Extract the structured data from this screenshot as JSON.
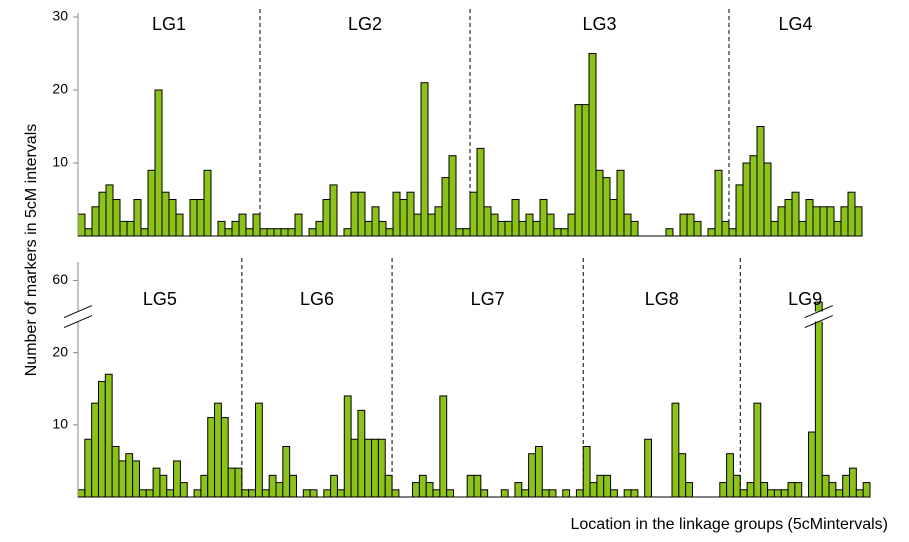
{
  "y_label": "Number of markers in 5cM intervals",
  "x_label": "Location in the linkage groups (5cMintervals)",
  "chart_data": [
    {
      "type": "bar",
      "color": "#8cc21a",
      "ylim": [
        0,
        30
      ],
      "yticks": [
        10,
        20,
        30
      ],
      "groups": [
        {
          "label": "LG1",
          "values": [
            3,
            1,
            4,
            6,
            7,
            5,
            2,
            2,
            5,
            1,
            9,
            20,
            6,
            5,
            3,
            0,
            5,
            5,
            9,
            0,
            2,
            1,
            2,
            3,
            1,
            3
          ]
        },
        {
          "label": "LG2",
          "values": [
            1,
            1,
            1,
            1,
            1,
            3,
            0,
            1,
            2,
            5,
            7,
            0,
            1,
            6,
            6,
            2,
            4,
            2,
            1,
            6,
            5,
            6,
            3,
            21,
            3,
            4,
            8,
            11,
            1,
            1
          ]
        },
        {
          "label": "LG3",
          "values": [
            6,
            12,
            4,
            3,
            2,
            2,
            5,
            2,
            3,
            2,
            5,
            3,
            1,
            1,
            3,
            18,
            18,
            25,
            9,
            8,
            5,
            9,
            3,
            2,
            0,
            0,
            0,
            0,
            1,
            0,
            3,
            3,
            2,
            0,
            1,
            9,
            2
          ]
        },
        {
          "label": "LG4",
          "values": [
            1,
            7,
            10,
            11,
            15,
            10,
            2,
            4,
            5,
            6,
            2,
            5,
            4,
            4,
            4,
            2,
            4,
            6,
            4
          ]
        }
      ]
    },
    {
      "type": "bar",
      "color": "#8cc21a",
      "ylim": [
        0,
        62
      ],
      "yticks": [
        10,
        20,
        60
      ],
      "axis_break": [
        25,
        55
      ],
      "groups": [
        {
          "label": "LG5",
          "values": [
            1,
            8,
            13,
            16,
            17,
            7,
            5,
            6,
            5,
            1,
            1,
            4,
            3,
            1,
            5,
            2,
            0,
            1,
            3,
            11,
            13,
            11,
            4,
            4
          ]
        },
        {
          "label": "LG6",
          "values": [
            1,
            1,
            13,
            1,
            3,
            2,
            7,
            3,
            0,
            1,
            1,
            0,
            1,
            3,
            1,
            14,
            8,
            12,
            8,
            8,
            8,
            3
          ]
        },
        {
          "label": "LG7",
          "values": [
            1,
            0,
            0,
            2,
            3,
            2,
            1,
            14,
            1,
            0,
            0,
            3,
            3,
            1,
            0,
            0,
            1,
            0,
            2,
            1,
            6,
            7,
            1,
            1,
            0,
            1,
            0,
            1
          ]
        },
        {
          "label": "LG8",
          "values": [
            7,
            2,
            3,
            3,
            1,
            0,
            1,
            1,
            0,
            8,
            0,
            0,
            0,
            13,
            6,
            2,
            0,
            0,
            0,
            0,
            2,
            6,
            3
          ]
        },
        {
          "label": "LG9",
          "values": [
            1,
            2,
            13,
            2,
            1,
            1,
            1,
            2,
            2,
            0,
            9,
            57,
            3,
            2,
            1,
            3,
            4,
            1,
            2
          ]
        }
      ]
    }
  ]
}
